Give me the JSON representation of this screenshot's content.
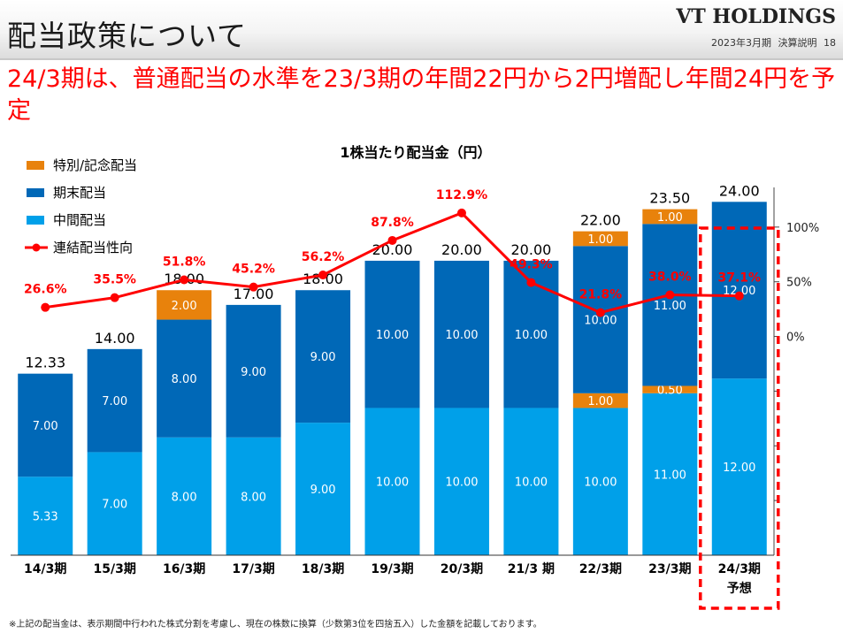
{
  "header": {
    "title": "配当政策について",
    "brand": "VT HOLDINGS",
    "subtitle": "2023年3月期 決算説明 18"
  },
  "headline": "24/3期は、普通配当の水準を23/3期の年間22円から2円増配し年間24円を予定",
  "footnote": "※上記の配当金は、表示期間中行われた株式分割を考慮し、現在の株数に換算（少数第3位を四捨五入）した金額を記載しております。",
  "colors": {
    "interim": "#00a0e9",
    "year_end": "#0068b7",
    "special": "#e8820c",
    "payout": "#ff0000",
    "highlight": "#ff0000"
  },
  "chart_data": {
    "type": "bar",
    "stacked": true,
    "title": "1株当たり配当金（円）",
    "categories": [
      "14/3期",
      "15/3期",
      "16/3期",
      "17/3期",
      "18/3期",
      "19/3期",
      "20/3期",
      "21/3 期",
      "22/3期",
      "23/3期",
      "24/3期"
    ],
    "forecast_note": "予想",
    "forecast_index": 10,
    "series": [
      {
        "name": "中間配当",
        "key": "interim",
        "values": [
          5.33,
          7.0,
          8.0,
          8.0,
          9.0,
          10.0,
          10.0,
          10.0,
          10.0,
          11.0,
          12.0
        ]
      },
      {
        "name": "期末配当",
        "key": "year_end",
        "values": [
          7.0,
          7.0,
          8.0,
          9.0,
          9.0,
          10.0,
          10.0,
          10.0,
          10.0,
          11.0,
          12.0
        ]
      },
      {
        "name": "特別/記念配当",
        "key": "special",
        "values": [
          0,
          0,
          2.0,
          0,
          0,
          0,
          0,
          0,
          2.0,
          1.5,
          0
        ]
      }
    ],
    "special_parts": [
      [],
      [],
      [
        {
          "v": 2.0,
          "pos": "top",
          "label": "2.00"
        }
      ],
      [],
      [],
      [],
      [],
      [],
      [
        {
          "v": 1.0,
          "pos": "bottom",
          "label": "1.00"
        },
        {
          "v": 1.0,
          "pos": "top",
          "label": "1.00"
        }
      ],
      [
        {
          "v": 0.5,
          "pos": "bottom",
          "label": "0.50"
        },
        {
          "v": 1.0,
          "pos": "top",
          "label": "1.00"
        }
      ],
      []
    ],
    "labels": {
      "interim": [
        "5.33",
        "7.00",
        "8.00",
        "8.00",
        "9.00",
        "10.00",
        "10.00",
        "10.00",
        "10.00",
        "11.00",
        "12.00"
      ],
      "year_end": [
        "7.00",
        "7.00",
        "8.00",
        "9.00",
        "9.00",
        "10.00",
        "10.00",
        "10.00",
        "10.00",
        "11.00",
        "12.00"
      ],
      "totals": [
        "12.33",
        "14.00",
        "18.00",
        "17.00",
        "18.00",
        "20.00",
        "20.00",
        "20.00",
        "22.00",
        "23.50",
        "24.00"
      ]
    },
    "totals": [
      12.33,
      14.0,
      18.0,
      17.0,
      18.0,
      20.0,
      20.0,
      20.0,
      22.0,
      23.5,
      24.0
    ],
    "ylim": [
      0,
      26
    ],
    "payout": {
      "name": "連結配当性向",
      "values": [
        26.6,
        35.5,
        51.8,
        45.2,
        56.2,
        87.8,
        112.9,
        49.3,
        21.8,
        38.0,
        37.1
      ],
      "labels": [
        "26.6%",
        "35.5%",
        "51.8%",
        "45.2%",
        "56.2%",
        "87.8%",
        "112.9%",
        "49.3%",
        "21.8%",
        "38.0%",
        "37.1%"
      ],
      "ylim": [
        -200,
        150
      ],
      "tick_values": [
        100,
        50,
        0,
        -50,
        -100,
        -150
      ],
      "tick_labels": [
        "100%",
        "50%",
        "0%",
        "",
        "",
        ""
      ]
    },
    "legend": {
      "position": "top-left",
      "items": [
        {
          "label": "特別/記念配当",
          "key": "special",
          "kind": "box"
        },
        {
          "label": "期末配当",
          "key": "year_end",
          "kind": "box"
        },
        {
          "label": "中間配当",
          "key": "interim",
          "kind": "box"
        },
        {
          "label": "連結配当性向",
          "key": "payout",
          "kind": "line"
        }
      ]
    }
  }
}
